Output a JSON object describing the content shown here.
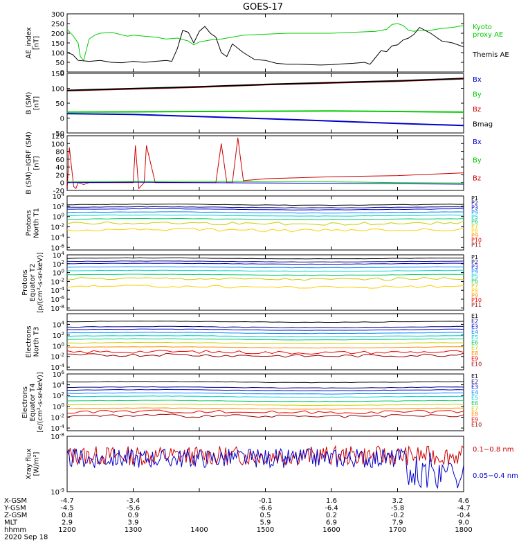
{
  "title": "GOES-17",
  "chart_data": [
    {
      "type": "line",
      "ylabel": "AE_index\n[nT]",
      "yticks": [
        "300",
        "250",
        "200",
        "150",
        "100",
        "50",
        "0"
      ],
      "ylim": [
        0,
        300
      ],
      "legend": [
        {
          "name": "Kyoto\nproxy AE",
          "color": "#00cc00"
        },
        {
          "name": "Themis AE",
          "color": "#000000"
        }
      ],
      "series": [
        {
          "name": "Kyoto proxy AE",
          "color": "#00cc00",
          "x": [
            1200,
            1205,
            1210,
            1212,
            1215,
            1220,
            1225,
            1230,
            1240,
            1255,
            1300,
            1310,
            1320,
            1330,
            1340,
            1350,
            1355,
            1400,
            1410,
            1420,
            1440,
            1500,
            1520,
            1540,
            1600,
            1620,
            1640,
            1650,
            1655,
            1700,
            1705,
            1710,
            1715,
            1720,
            1730,
            1740,
            1750,
            1800
          ],
          "y": [
            220,
            190,
            150,
            80,
            60,
            170,
            190,
            200,
            205,
            185,
            190,
            185,
            180,
            170,
            175,
            160,
            140,
            155,
            165,
            170,
            190,
            195,
            200,
            200,
            200,
            205,
            210,
            220,
            245,
            250,
            240,
            215,
            210,
            215,
            215,
            225,
            230,
            240
          ]
        },
        {
          "name": "Themis AE",
          "color": "#000000",
          "x": [
            1200,
            1205,
            1210,
            1220,
            1230,
            1240,
            1250,
            1300,
            1310,
            1320,
            1330,
            1335,
            1340,
            1345,
            1350,
            1355,
            1400,
            1405,
            1410,
            1415,
            1420,
            1425,
            1430,
            1440,
            1450,
            1500,
            1510,
            1520,
            1530,
            1540,
            1550,
            1600,
            1610,
            1620,
            1630,
            1635,
            1640,
            1645,
            1650,
            1655,
            1700,
            1705,
            1710,
            1715,
            1720,
            1730,
            1740,
            1750,
            1800
          ],
          "y": [
            100,
            90,
            60,
            55,
            60,
            50,
            48,
            55,
            50,
            55,
            60,
            55,
            120,
            215,
            205,
            150,
            210,
            235,
            200,
            180,
            100,
            80,
            145,
            100,
            65,
            60,
            45,
            40,
            40,
            38,
            36,
            38,
            42,
            45,
            50,
            40,
            75,
            110,
            105,
            135,
            140,
            165,
            175,
            195,
            230,
            200,
            160,
            150,
            130
          ]
        }
      ]
    },
    {
      "type": "line",
      "ylabel": "B (SM)\n[nT]",
      "yticks": [
        "150",
        "100",
        "50",
        "0",
        "-50"
      ],
      "ylim": [
        -50,
        150
      ],
      "legend": [
        {
          "name": "Bx",
          "color": "#0000cc"
        },
        {
          "name": "By",
          "color": "#00cc00"
        },
        {
          "name": "Bz",
          "color": "#cc0000"
        },
        {
          "name": "Bmag",
          "color": "#000000"
        }
      ],
      "series": [
        {
          "name": "Bz",
          "color": "#cc0000",
          "x": [
            1200,
            1300,
            1400,
            1500,
            1600,
            1700,
            1800
          ],
          "y": [
            92,
            98,
            104,
            112,
            118,
            124,
            132
          ]
        },
        {
          "name": "Bmag",
          "color": "#000000",
          "x": [
            1200,
            1300,
            1400,
            1500,
            1600,
            1700,
            1800
          ],
          "y": [
            93,
            99,
            105,
            113,
            119,
            125,
            133
          ]
        },
        {
          "name": "By",
          "color": "#00cc00",
          "x": [
            1200,
            1300,
            1400,
            1500,
            1600,
            1700,
            1800
          ],
          "y": [
            20,
            21,
            22,
            23,
            24,
            22,
            20
          ]
        },
        {
          "name": "Bx",
          "color": "#0000cc",
          "x": [
            1200,
            1300,
            1400,
            1500,
            1600,
            1700,
            1800
          ],
          "y": [
            15,
            12,
            5,
            -2,
            -10,
            -18,
            -25
          ]
        }
      ]
    },
    {
      "type": "line",
      "ylabel": "B (SM)−IGRF (SM)\n[nT]",
      "yticks": [
        "120",
        "100",
        "80",
        "60",
        "40",
        "20",
        "0",
        "-20"
      ],
      "ylim": [
        -20,
        120
      ],
      "legend": [
        {
          "name": "Bx",
          "color": "#0000cc"
        },
        {
          "name": "By",
          "color": "#00cc00"
        },
        {
          "name": "Bz",
          "color": "#cc0000"
        }
      ],
      "series": [
        {
          "name": "Bz",
          "color": "#cc0000",
          "x": [
            1200,
            1202,
            1206,
            1208,
            1210,
            1215,
            1220,
            1300,
            1302,
            1305,
            1310,
            1312,
            1320,
            1400,
            1410,
            1415,
            1420,
            1425,
            1430,
            1435,
            1440,
            1500,
            1600,
            1700,
            1800
          ],
          "y": [
            -20,
            90,
            -10,
            -15,
            0,
            -5,
            0,
            0,
            95,
            -15,
            0,
            95,
            0,
            0,
            0,
            0,
            100,
            0,
            0,
            115,
            5,
            10,
            15,
            18,
            25
          ]
        },
        {
          "name": "By",
          "color": "#00cc00",
          "x": [
            1200,
            1300,
            1400,
            1500,
            1600,
            1700,
            1800
          ],
          "y": [
            2,
            3,
            3,
            2,
            2,
            0,
            -1
          ]
        },
        {
          "name": "Bx",
          "color": "#0000cc",
          "x": [
            1200,
            1300,
            1400,
            1500,
            1600,
            1700,
            1800
          ],
          "y": [
            0,
            1,
            0,
            -1,
            -2,
            -3,
            -4
          ]
        }
      ]
    },
    {
      "type": "line",
      "log": true,
      "ylabel": "Protons\nNorth T1",
      "yticks": [
        "10^4",
        "10^2",
        "10^0",
        "10^-2",
        "10^-4",
        "10^-6"
      ],
      "ylim": [
        -6.5,
        4
      ],
      "legend": [
        {
          "name": "P1",
          "color": "#000000"
        },
        {
          "name": "P2",
          "color": "#000080"
        },
        {
          "name": "P3",
          "color": "#0000cc"
        },
        {
          "name": "P4",
          "color": "#0088ff"
        },
        {
          "name": "P5",
          "color": "#00cccc"
        },
        {
          "name": "P6",
          "color": "#00cc66"
        },
        {
          "name": "P7",
          "color": "#cccc00"
        },
        {
          "name": "P8",
          "color": "#ffcc00"
        },
        {
          "name": "P9",
          "color": "#ff8800"
        },
        {
          "name": "P10",
          "color": "#ee0000"
        },
        {
          "name": "P11",
          "color": "#990000"
        }
      ],
      "levels_log10": [
        2.3,
        1.8,
        1.4,
        0.8,
        0.2,
        -0.5,
        -1.3,
        -2.6
      ]
    },
    {
      "type": "line",
      "log": true,
      "ylabel": "Protons\nEquator T2\n[p/(cm²-s-sr-keV)]",
      "yticks": [
        "10^4",
        "10^2",
        "10^0",
        "10^-2",
        "10^-4",
        "10^-6",
        "10^-8"
      ],
      "ylim": [
        -8.5,
        4
      ],
      "legend": [
        {
          "name": "P1",
          "color": "#000000"
        },
        {
          "name": "P2",
          "color": "#000080"
        },
        {
          "name": "P3",
          "color": "#0000cc"
        },
        {
          "name": "P4",
          "color": "#0088ff"
        },
        {
          "name": "P5",
          "color": "#00cccc"
        },
        {
          "name": "P6",
          "color": "#00cc66"
        },
        {
          "name": "P7",
          "color": "#cccc00"
        },
        {
          "name": "P8",
          "color": "#ffcc00"
        },
        {
          "name": "P9",
          "color": "#ff8800"
        },
        {
          "name": "P10",
          "color": "#ee0000"
        },
        {
          "name": "P11",
          "color": "#990000"
        }
      ],
      "levels_log10": [
        3.2,
        2.5,
        2.0,
        1.2,
        0.4,
        -0.5,
        -1.4,
        -3.2
      ]
    },
    {
      "type": "line",
      "log": true,
      "ylabel": "Electrons\nNorth T3",
      "yticks": [
        "10^4",
        "10^2",
        "10^0",
        "10^-2",
        "10^-4"
      ],
      "ylim": [
        -4.5,
        6
      ],
      "legend": [
        {
          "name": "E1",
          "color": "#000000"
        },
        {
          "name": "E2",
          "color": "#000080"
        },
        {
          "name": "E3",
          "color": "#0000cc"
        },
        {
          "name": "E4",
          "color": "#0088ff"
        },
        {
          "name": "E5",
          "color": "#00cccc"
        },
        {
          "name": "E6",
          "color": "#00cc66"
        },
        {
          "name": "E7",
          "color": "#cccc00"
        },
        {
          "name": "E8",
          "color": "#ff8800"
        },
        {
          "name": "E9",
          "color": "#ee0000"
        },
        {
          "name": "E10",
          "color": "#990000"
        }
      ],
      "levels_log10": [
        4.5,
        3.5,
        3.0,
        2.4,
        1.8,
        1.2,
        0.5,
        -0.3,
        -1.2,
        -1.8
      ]
    },
    {
      "type": "line",
      "log": true,
      "ylabel": "Electrons\nEquator T4\n[e/(cm²-s-sr-keV)]",
      "yticks": [
        "10^6",
        "10^4",
        "10^2",
        "10^0",
        "10^-2",
        "10^-4"
      ],
      "ylim": [
        -4.5,
        6
      ],
      "legend": [
        {
          "name": "E1",
          "color": "#000000"
        },
        {
          "name": "E2",
          "color": "#000080"
        },
        {
          "name": "E3",
          "color": "#0000cc"
        },
        {
          "name": "E4",
          "color": "#0088ff"
        },
        {
          "name": "E5",
          "color": "#00cccc"
        },
        {
          "name": "E6",
          "color": "#00cc66"
        },
        {
          "name": "E7",
          "color": "#cccc00"
        },
        {
          "name": "E8",
          "color": "#ff8800"
        },
        {
          "name": "E9",
          "color": "#ee0000"
        },
        {
          "name": "E10",
          "color": "#990000"
        }
      ],
      "levels_log10": [
        4.5,
        3.5,
        3.0,
        2.4,
        1.8,
        1.0,
        0.3,
        -0.4,
        -1.0,
        -1.8
      ]
    },
    {
      "type": "line",
      "log": true,
      "ylabel": "Xray flux\n[W/m²]",
      "yticks": [
        "10^-8",
        "10^-9"
      ],
      "ylim": [
        -9,
        -8
      ],
      "legend": [
        {
          "name": "0.1−0.8 nm",
          "color": "#cc0000"
        },
        {
          "name": "0.05−0.4 nm",
          "color": "#0000cc"
        }
      ],
      "series": [
        {
          "name": "0.1−0.8 nm",
          "color": "#cc0000",
          "base_log10": -8.35
        },
        {
          "name": "0.05−0.4 nm",
          "color": "#0000cc",
          "base_log10": -8.4
        }
      ]
    }
  ],
  "xaxis": {
    "range": [
      1200,
      1800
    ],
    "labels": [
      "1200",
      "1300",
      "1400",
      "1500",
      "1600",
      "1700",
      "1800"
    ],
    "ephemeris_rows": [
      {
        "name": "X-GSM",
        "values": [
          "-4.7",
          "-3.4",
          "",
          "-0.1",
          "1.6",
          "3.2",
          "4.6"
        ]
      },
      {
        "name": "Y-GSM",
        "values": [
          "-4.5",
          "-5.6",
          "",
          "-6.6",
          "-6.4",
          "-5.8",
          "-4.7"
        ]
      },
      {
        "name": "Z-GSM",
        "values": [
          "0.8",
          "0.9",
          "",
          "0.5",
          "0.2",
          "-0.2",
          "-0.4"
        ]
      },
      {
        "name": "MLT",
        "values": [
          "2.9",
          "3.9",
          "",
          "5.9",
          "6.9",
          "7.9",
          "9.0"
        ]
      },
      {
        "name": "hhmm",
        "values": [
          "1200",
          "1300",
          "1400",
          "1500",
          "1600",
          "1700",
          "1800"
        ]
      }
    ],
    "date": "2020 Sep 18"
  }
}
